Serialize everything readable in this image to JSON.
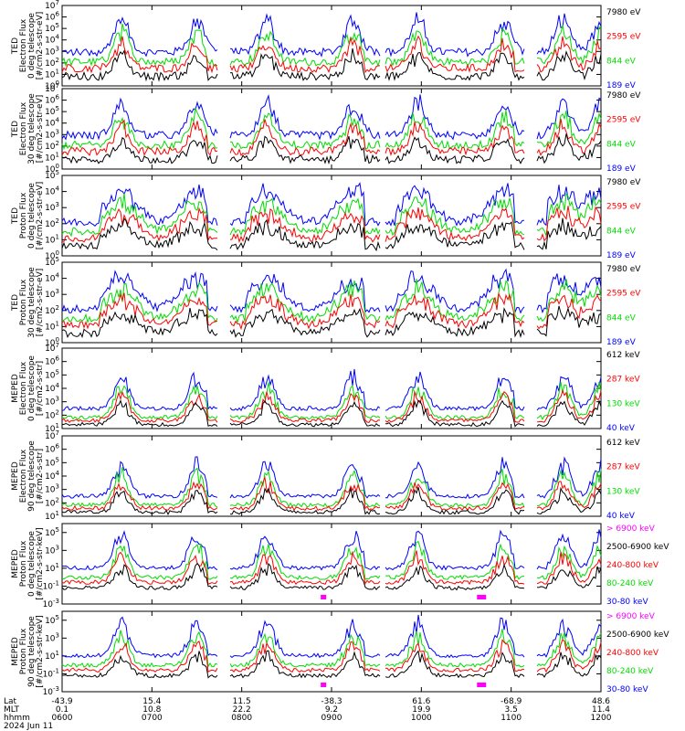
{
  "colors": {
    "blue": "#0000ff",
    "red": "#ff0000",
    "green": "#00dd00",
    "black": "#000000",
    "magenta": "#ff00ff",
    "frame": "#000000"
  },
  "footer": {
    "row_labels": [
      "Lat",
      "MLT",
      "hhmm",
      "2024 Jun 11"
    ],
    "ticks": [
      {
        "lat": "-43.9",
        "mlt": "0.1",
        "time": "0600"
      },
      {
        "lat": "15.4",
        "mlt": "10.8",
        "time": "0700"
      },
      {
        "lat": "11.5",
        "mlt": "22.2",
        "time": "0800"
      },
      {
        "lat": "-38.3",
        "mlt": "9.2",
        "time": "0900"
      },
      {
        "lat": "61.6",
        "mlt": "19.9",
        "time": "1000"
      },
      {
        "lat": "-68.9",
        "mlt": "3.5",
        "time": "1100"
      },
      {
        "lat": "48.6",
        "mlt": "11.4",
        "time": "1200"
      }
    ]
  },
  "chart_data": [
    {
      "type": "line",
      "ylabel": [
        "TED",
        "Electron Flux",
        "0 deg telescope",
        "[#/cm2-s-str-eV]"
      ],
      "yscale": "log",
      "ylim_exp": [
        0,
        7
      ],
      "xlim": [
        "0600",
        "1200"
      ],
      "series": [
        {
          "name": "7980 eV",
          "color": "black"
        },
        {
          "name": "2595 eV",
          "color": "red"
        },
        {
          "name": "844 eV",
          "color": "green"
        },
        {
          "name": "189 eV",
          "color": "blue"
        }
      ]
    },
    {
      "type": "line",
      "ylabel": [
        "TED",
        "Electron Flux",
        "30 deg telescope",
        "[#/cm2-s-str-eV]"
      ],
      "yscale": "log",
      "ylim_exp": [
        0,
        7
      ],
      "xlim": [
        "0600",
        "1200"
      ],
      "series": [
        {
          "name": "7980 eV",
          "color": "black"
        },
        {
          "name": "2595 eV",
          "color": "red"
        },
        {
          "name": "844 eV",
          "color": "green"
        },
        {
          "name": "189 eV",
          "color": "blue"
        }
      ]
    },
    {
      "type": "line",
      "ylabel": [
        "TED",
        "Proton Flux",
        "0 deg telescope",
        "[#/cm2-s-str-eV]"
      ],
      "yscale": "log",
      "ylim_exp": [
        0,
        5
      ],
      "xlim": [
        "0600",
        "1200"
      ],
      "series": [
        {
          "name": "7980 eV",
          "color": "black"
        },
        {
          "name": "2595 eV",
          "color": "red"
        },
        {
          "name": "844 eV",
          "color": "green"
        },
        {
          "name": "189 eV",
          "color": "blue"
        }
      ]
    },
    {
      "type": "line",
      "ylabel": [
        "TED",
        "Proton Flux",
        "30 deg telescope",
        "[#/cm2-s-str-eV]"
      ],
      "yscale": "log",
      "ylim_exp": [
        0,
        5
      ],
      "xlim": [
        "0600",
        "1200"
      ],
      "series": [
        {
          "name": "7980 eV",
          "color": "black"
        },
        {
          "name": "2595 eV",
          "color": "red"
        },
        {
          "name": "844 eV",
          "color": "green"
        },
        {
          "name": "189 eV",
          "color": "blue"
        }
      ]
    },
    {
      "type": "line",
      "ylabel": [
        "MEPED",
        "Electron Flux",
        "0 deg telescope",
        "[#/cm2-s-str]"
      ],
      "yscale": "log",
      "ylim_exp": [
        1,
        7
      ],
      "xlim": [
        "0600",
        "1200"
      ],
      "series": [
        {
          "name": "612 keV",
          "color": "black"
        },
        {
          "name": "287 keV",
          "color": "red"
        },
        {
          "name": "130 keV",
          "color": "green"
        },
        {
          "name": "40 keV",
          "color": "blue"
        }
      ]
    },
    {
      "type": "line",
      "ylabel": [
        "MEPED",
        "Electron Flux",
        "90 deg telescope",
        "[#/cm2-s-str]"
      ],
      "yscale": "log",
      "ylim_exp": [
        1,
        7
      ],
      "xlim": [
        "0600",
        "1200"
      ],
      "series": [
        {
          "name": "612 keV",
          "color": "black"
        },
        {
          "name": "287 keV",
          "color": "red"
        },
        {
          "name": "130 keV",
          "color": "green"
        },
        {
          "name": "40 keV",
          "color": "blue"
        }
      ]
    },
    {
      "type": "line",
      "ylabel": [
        "MEPED",
        "Proton Flux",
        "0 deg telescope",
        "[#/cm2-s-str-keV]"
      ],
      "yscale": "log",
      "ylim_exp": [
        -3,
        6
      ],
      "xlim": [
        "0600",
        "1200"
      ],
      "series": [
        {
          "name": "> 6900 keV",
          "color": "magenta"
        },
        {
          "name": "2500-6900 keV",
          "color": "black"
        },
        {
          "name": "240-800 keV",
          "color": "red"
        },
        {
          "name": "80-240 keV",
          "color": "green"
        },
        {
          "name": "30-80 keV",
          "color": "blue"
        }
      ]
    },
    {
      "type": "line",
      "ylabel": [
        "MEPED",
        "Proton Flux",
        "90 deg telescope",
        "[#/cm2-s-str-keV]"
      ],
      "yscale": "log",
      "ylim_exp": [
        -3,
        6
      ],
      "xlim": [
        "0600",
        "1200"
      ],
      "series": [
        {
          "name": "> 6900 keV",
          "color": "magenta"
        },
        {
          "name": "2500-6900 keV",
          "color": "black"
        },
        {
          "name": "240-800 keV",
          "color": "red"
        },
        {
          "name": "80-240 keV",
          "color": "green"
        },
        {
          "name": "30-80 keV",
          "color": "blue"
        }
      ]
    }
  ]
}
